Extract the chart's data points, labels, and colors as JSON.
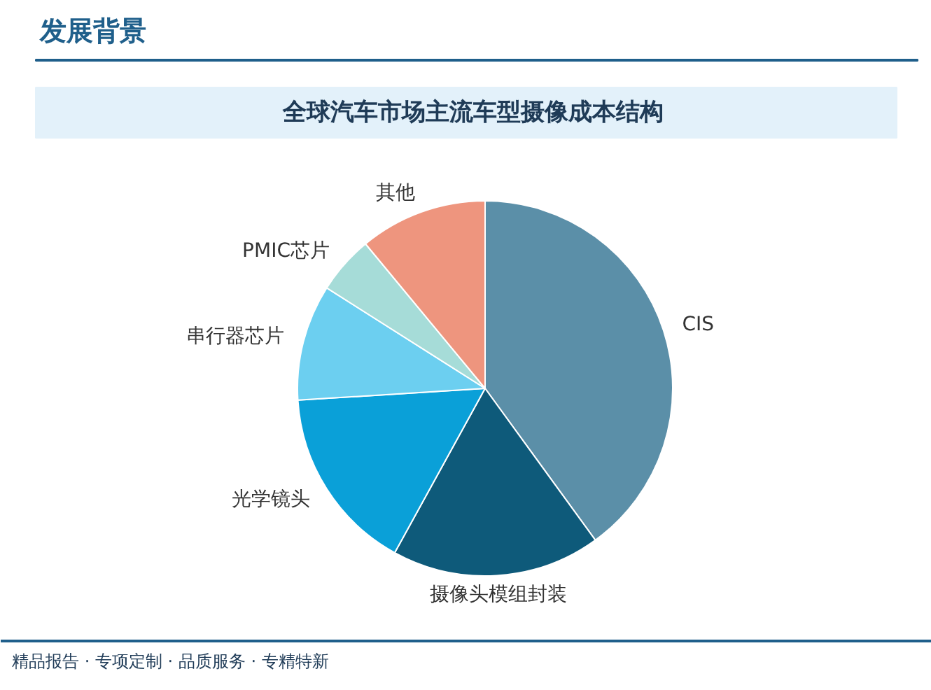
{
  "chart_data": {
    "type": "pie",
    "title": "全球汽车市场主流车型摄像成本结构",
    "categories": [
      "CIS",
      "摄像头模组封装",
      "光学镜头",
      "串行器芯片",
      "PMIC芯片",
      "其他"
    ],
    "values": [
      40,
      18,
      16,
      10,
      5,
      11
    ],
    "colors": [
      "#5b8fa8",
      "#0e5a7a",
      "#0aa0d8",
      "#6ccff0",
      "#a6dcd8",
      "#ee957e"
    ],
    "annotations": [
      "发展背景",
      "精品报告 · 专项定制 · 品质服务 · 专精特新"
    ]
  }
}
